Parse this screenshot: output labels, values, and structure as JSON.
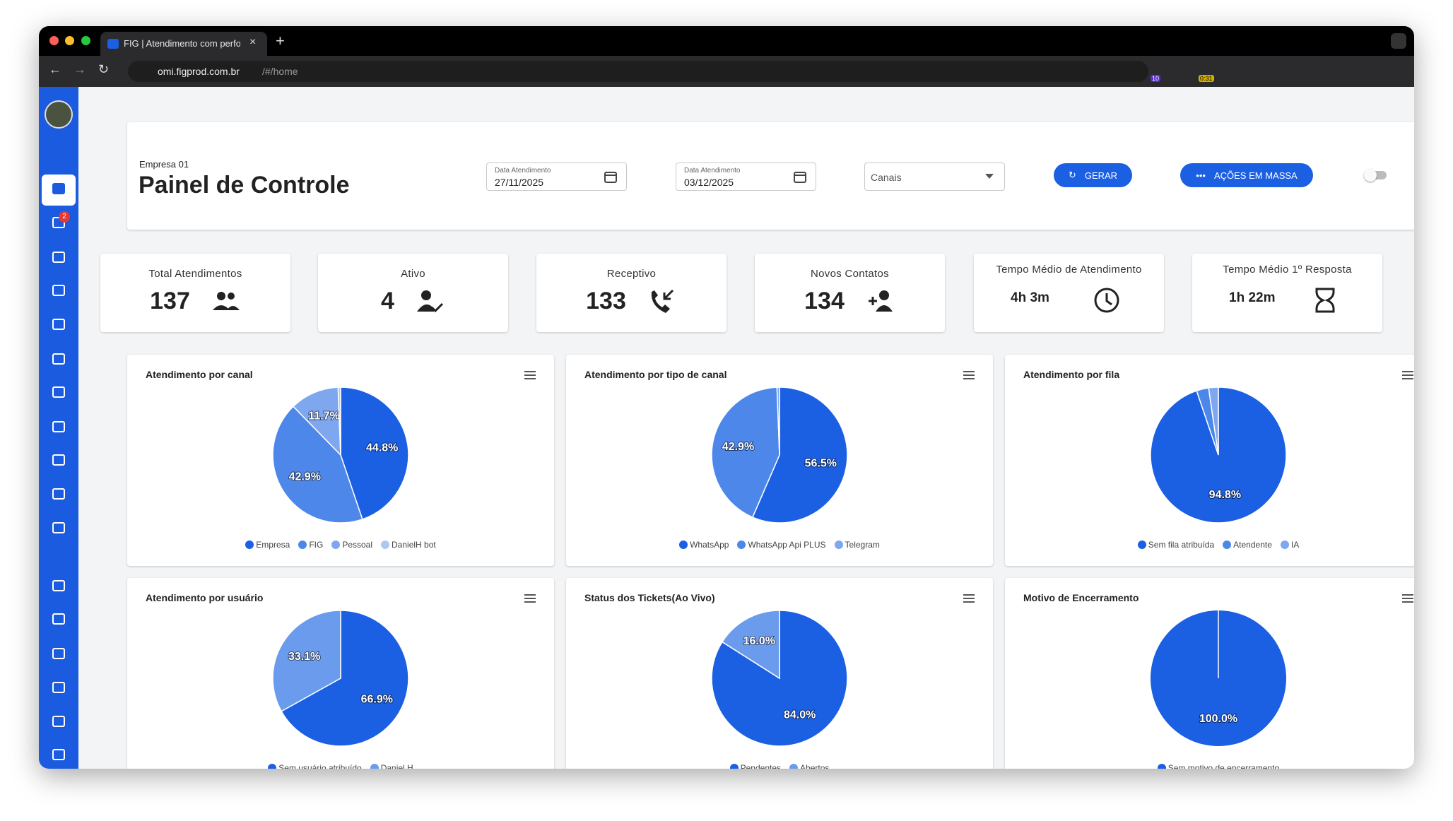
{
  "browser": {
    "tab_title": "FIG | Atendimento com perfo",
    "url_host": "omi.figprod.com.br",
    "url_path": "/#/home",
    "extension_badges": [
      "10",
      "0:31"
    ]
  },
  "sidebar": {
    "notification_badge": "2"
  },
  "header": {
    "company": "Empresa 01",
    "title": "Painel de Controle",
    "date_from_label": "Data Atendimento",
    "date_from": "27/11/2025",
    "date_to_label": "Data Atendimento",
    "date_to": "03/12/2025",
    "channels_placeholder": "Canais",
    "generate_button": "GERAR",
    "bulk_button": "AÇÕES EM MASSA"
  },
  "stats": [
    {
      "label": "Total Atendimentos",
      "value": "137",
      "icon": "people"
    },
    {
      "label": "Ativo",
      "value": "4",
      "icon": "person-check"
    },
    {
      "label": "Receptivo",
      "value": "133",
      "icon": "phone-in"
    },
    {
      "label": "Novos Contatos",
      "value": "134",
      "icon": "person-add"
    },
    {
      "label": "Tempo Médio de Atendimento",
      "value": "4h 3m",
      "icon": "clock"
    },
    {
      "label": "Tempo Médio 1º Resposta",
      "value": "1h 22m",
      "icon": "hourglass"
    }
  ],
  "chart_data": [
    {
      "type": "pie",
      "title": "Atendimento por canal",
      "categories": [
        "Empresa",
        "FIG",
        "Pessoal",
        "DanielH bot"
      ],
      "values": [
        44.8,
        42.9,
        11.7,
        0.6
      ],
      "value_labels": [
        "44.8%",
        "42.9%",
        "11.7%",
        null
      ],
      "colors": [
        "#1b5fe3",
        "#4d87ea",
        "#7ea7ef",
        "#adc8f5"
      ]
    },
    {
      "type": "pie",
      "title": "Atendimento por tipo de canal",
      "categories": [
        "WhatsApp",
        "WhatsApp Api PLUS",
        "Telegram"
      ],
      "values": [
        56.5,
        42.9,
        0.6
      ],
      "value_labels": [
        "56.5%",
        "42.9%",
        null
      ],
      "colors": [
        "#1b5fe3",
        "#4d87ea",
        "#7ea7ef"
      ]
    },
    {
      "type": "pie",
      "title": "Atendimento por fila",
      "categories": [
        "Sem fila atribuída",
        "Atendente",
        "IA"
      ],
      "values": [
        94.8,
        2.9,
        2.3
      ],
      "value_labels": [
        "94.8%",
        null,
        null
      ],
      "colors": [
        "#1b5fe3",
        "#4d87ea",
        "#7ea7ef"
      ]
    },
    {
      "type": "pie",
      "title": "Atendimento por usuário",
      "categories": [
        "Sem usuário atribuído",
        "Daniel H"
      ],
      "values": [
        66.9,
        33.1
      ],
      "value_labels": [
        "66.9%",
        "33.1%"
      ],
      "colors": [
        "#1b5fe3",
        "#6b9bed"
      ]
    },
    {
      "type": "pie",
      "title": "Status dos Tickets(Ao Vivo)",
      "categories": [
        "Pendentes",
        "Abertos"
      ],
      "values": [
        84.0,
        16.0
      ],
      "value_labels": [
        "84.0%",
        "16.0%"
      ],
      "colors": [
        "#1b5fe3",
        "#6b9bed"
      ]
    },
    {
      "type": "pie",
      "title": "Motivo de Encerramento",
      "categories": [
        "Sem motivo de encerramento"
      ],
      "values": [
        100.0
      ],
      "value_labels": [
        "100.0%"
      ],
      "colors": [
        "#1b5fe3"
      ]
    }
  ]
}
